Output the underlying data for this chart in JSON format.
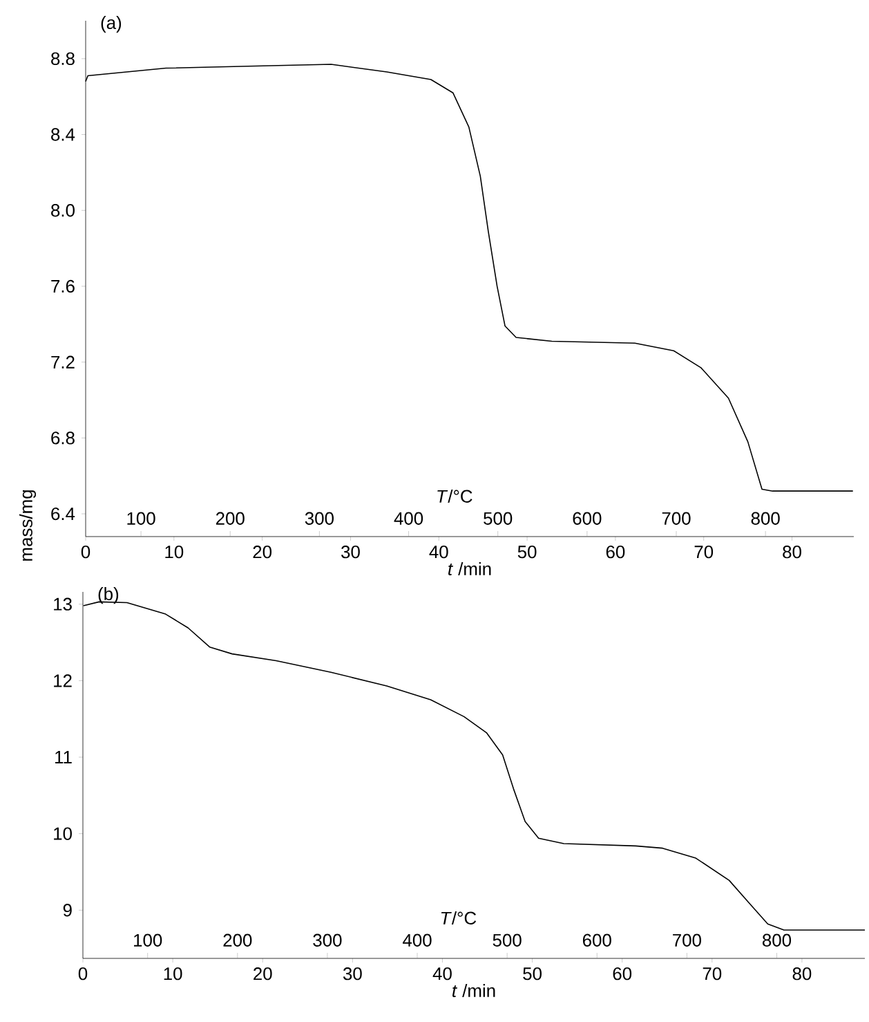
{
  "chart_data": [
    {
      "type": "line",
      "title": "(a)",
      "xlabel": "*t* /min",
      "x2label": "*T*/°C",
      "ylabel": "mass/mg",
      "xlim": [
        0,
        87
      ],
      "xticks": [
        0,
        10,
        20,
        30,
        40,
        50,
        60,
        70,
        80
      ],
      "x2lim": [
        38,
        899
      ],
      "x2ticks": [
        100,
        200,
        300,
        400,
        500,
        600,
        700,
        800
      ],
      "ylim": [
        6.28,
        9.0
      ],
      "yticks": [
        6.4,
        6.8,
        7.2,
        7.6,
        {
          "value": 8.0,
          "label": "8.0"
        },
        8.4,
        8.8
      ],
      "series": [
        {
          "color": "#000000",
          "x": [
            0,
            0.25,
            9.1,
            18.4,
            27.8,
            34.1,
            39.1,
            41.6,
            43.4,
            44.7,
            45.6,
            46.6,
            47.5,
            48.75,
            52.8,
            62.2,
            66.6,
            69.7,
            72.8,
            75,
            76.6,
            77.8,
            86.9
          ],
          "values": [
            8.68,
            8.71,
            8.75,
            8.76,
            8.77,
            8.73,
            8.69,
            8.62,
            8.44,
            8.18,
            7.89,
            7.6,
            7.39,
            7.33,
            7.31,
            7.3,
            7.26,
            7.17,
            7.01,
            6.78,
            6.53,
            6.52,
            6.52
          ]
        }
      ]
    },
    {
      "type": "line",
      "title": "(b)",
      "xlabel": "*t* /min",
      "x2label": "*T*/°C",
      "xlim": [
        0,
        87
      ],
      "xticks": [
        0,
        10,
        20,
        30,
        40,
        50,
        60,
        70,
        80
      ],
      "x2lim": [
        28,
        898
      ],
      "x2ticks": [
        100,
        200,
        300,
        400,
        500,
        600,
        700,
        800
      ],
      "ylim": [
        8.37,
        13.16
      ],
      "yticks": [
        9,
        10,
        11,
        12,
        13
      ],
      "series": [
        {
          "color": "#000000",
          "x": [
            0.05,
            1.8,
            4.9,
            9.2,
            11.7,
            14.1,
            16.6,
            21.5,
            27.6,
            33.8,
            38.7,
            42.4,
            44.9,
            46.7,
            47.9,
            49.2,
            50.7,
            53.5,
            61.5,
            64.5,
            68.2,
            71.9,
            74.3,
            76.2,
            78,
            87
          ],
          "values": [
            12.98,
            13.03,
            13.02,
            12.87,
            12.69,
            12.44,
            12.35,
            12.26,
            12.11,
            11.93,
            11.75,
            11.53,
            11.32,
            11.03,
            10.59,
            10.16,
            9.94,
            9.87,
            9.84,
            9.81,
            9.68,
            9.39,
            9.07,
            8.82,
            8.74,
            8.74
          ]
        }
      ]
    }
  ]
}
